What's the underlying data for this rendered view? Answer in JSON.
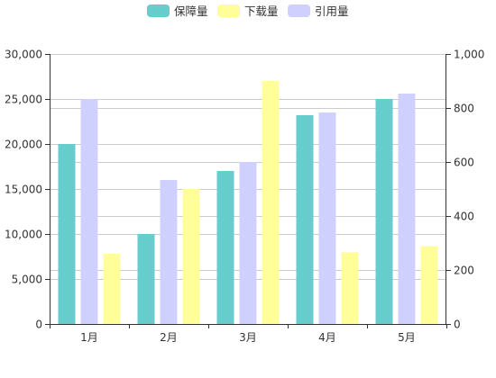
{
  "chart_data": {
    "type": "bar",
    "categories": [
      "1月",
      "2月",
      "3月",
      "4月",
      "5月"
    ],
    "series": [
      {
        "name": "保障量",
        "axis": "left",
        "color": "#66cdcc",
        "values": [
          20000,
          10000,
          17000,
          23200,
          25000
        ]
      },
      {
        "name": "引用量",
        "axis": "left",
        "color": "#d0d0fe",
        "values": [
          25000,
          16000,
          18000,
          23500,
          25600
        ]
      },
      {
        "name": "下载量",
        "axis": "right",
        "color": "#fffe99",
        "values": [
          260,
          500,
          900,
          265,
          288
        ]
      }
    ],
    "legend_order": [
      "保障量",
      "下载量",
      "引用量"
    ],
    "legend_position": "top-center",
    "y_left": {
      "min": 0,
      "max": 30000,
      "ticks": [
        0,
        5000,
        10000,
        15000,
        20000,
        25000,
        30000
      ],
      "tick_labels": [
        "0",
        "5,000",
        "10,000",
        "15,000",
        "20,000",
        "25,000",
        "30,000"
      ]
    },
    "y_right": {
      "min": 0,
      "max": 1000,
      "ticks": [
        0,
        200,
        400,
        600,
        800,
        1000
      ],
      "tick_labels": [
        "0",
        "200",
        "400",
        "600",
        "800",
        "1,000"
      ]
    },
    "grid": true,
    "gridline_color": "#cccccc",
    "axis_color": "#333333",
    "title": "",
    "xlabel": "",
    "ylabel": ""
  }
}
